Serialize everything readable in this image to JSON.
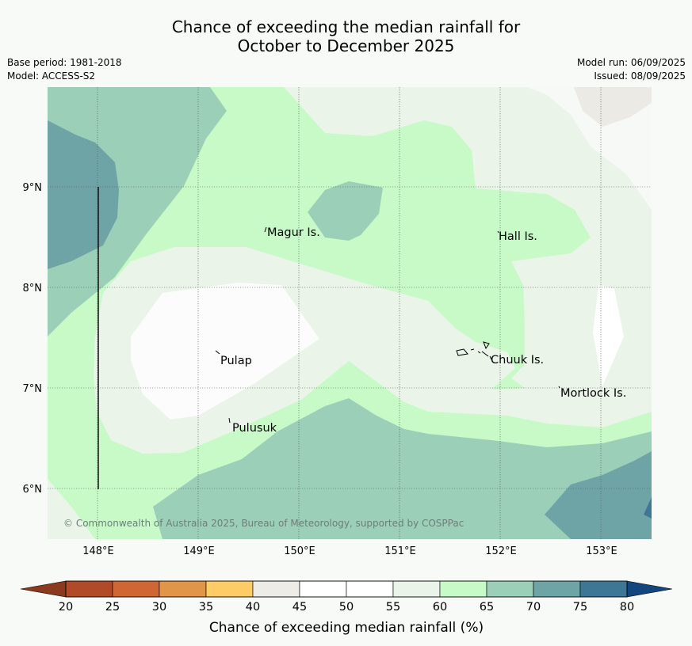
{
  "header": {
    "title_line1": "Chance of exceeding the median rainfall for",
    "title_line2": "October to December 2025",
    "base_period": "Base period: 1981-2018",
    "model": "Model: ACCESS-S2",
    "model_run": "Model run: 06/09/2025",
    "issued": "Issued: 08/09/2025"
  },
  "map": {
    "lat_labels": [
      "9°N",
      "8°N",
      "7°N",
      "6°N"
    ],
    "lon_labels": [
      "148°E",
      "149°E",
      "150°E",
      "151°E",
      "152°E",
      "153°E"
    ],
    "places": [
      "Magur Is.",
      "Hall Is.",
      "Pulap",
      "Chuuk Is.",
      "Mortlock Is.",
      "Pulusuk"
    ],
    "copyright": "© Commonwealth of Australia 2025, Bureau of Meteorology, supported by COSPPac"
  },
  "legend": {
    "title": "Chance of exceeding median rainfall (%)",
    "ticks": [
      "20",
      "25",
      "30",
      "35",
      "40",
      "45",
      "50",
      "55",
      "60",
      "65",
      "70",
      "75",
      "80"
    ],
    "colors": [
      "#b04a28",
      "#cf6633",
      "#e19548",
      "#fdcc66",
      "#eeece6",
      "#ffffff",
      "#ffffff",
      "#eaf4e9",
      "#c8fac8",
      "#9ccfb8",
      "#6fa4a6",
      "#3e7696"
    ],
    "under_color": "#8b3a1e",
    "over_color": "#13457e"
  }
}
